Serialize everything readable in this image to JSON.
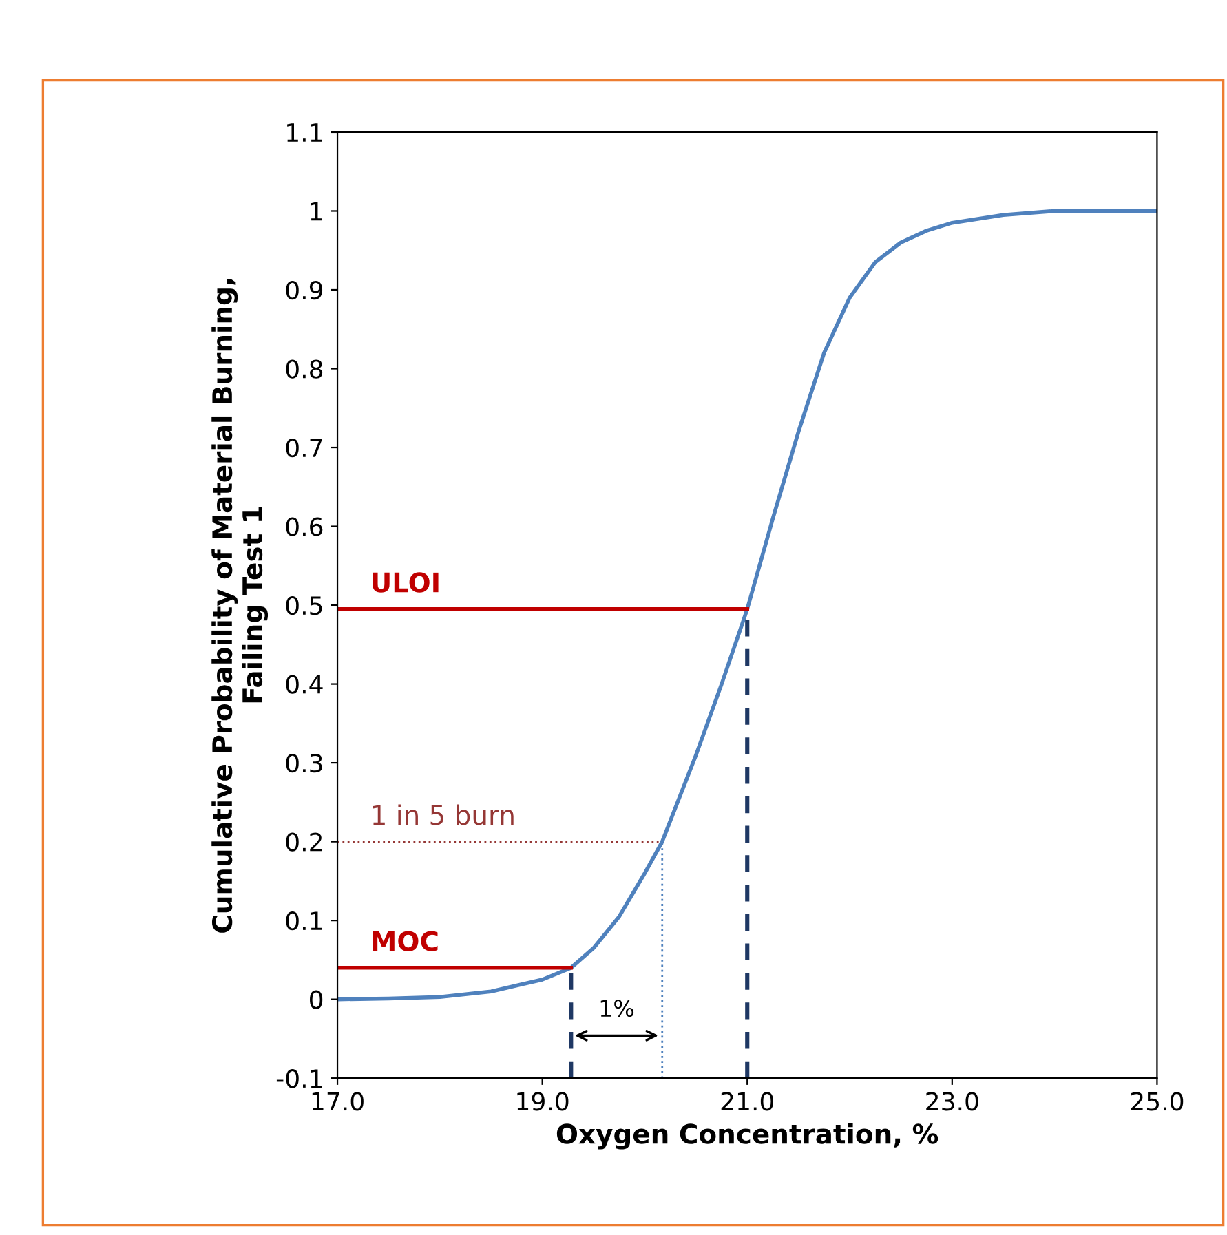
{
  "chart_data": {
    "type": "line",
    "xlabel": "Oxygen Concentration, %",
    "ylabel": "Cumulative Probability of Material Burning,\nFailing Test 1",
    "xlim": [
      17,
      25
    ],
    "ylim": [
      -0.1,
      1.1
    ],
    "xticks": [
      {
        "value": 17,
        "label": "17.0"
      },
      {
        "value": 19,
        "label": "19.0"
      },
      {
        "value": 21,
        "label": "21.0"
      },
      {
        "value": 23,
        "label": "23.0"
      },
      {
        "value": 25,
        "label": "25.0"
      }
    ],
    "yticks": [
      -0.1,
      0,
      0.1,
      0.2,
      0.3,
      0.4,
      0.5,
      0.6,
      0.7,
      0.8,
      0.9,
      1,
      1.1
    ],
    "grid": false,
    "marker": "none",
    "series": [
      {
        "color": "#4f81bd",
        "line_style": "solid",
        "x": [
          17,
          17.5,
          18,
          18.5,
          19,
          19.28,
          19.5,
          19.75,
          20,
          20.17,
          20.5,
          20.75,
          21,
          21.25,
          21.5,
          21.75,
          22,
          22.25,
          22.5,
          22.75,
          23,
          23.5,
          24,
          24.5,
          25
        ],
        "values": [
          0,
          0.001,
          0.003,
          0.01,
          0.025,
          0.04,
          0.065,
          0.105,
          0.16,
          0.2,
          0.31,
          0.4,
          0.495,
          0.61,
          0.72,
          0.82,
          0.89,
          0.935,
          0.96,
          0.975,
          0.985,
          0.995,
          1.0,
          1.0,
          1.0
        ]
      },
      {
        "name": "ULOI",
        "color": "#c00000",
        "line_style": "solid",
        "x": [
          17,
          21
        ],
        "values": [
          0.495,
          0.495
        ]
      },
      {
        "name": "MOC",
        "color": "#c00000",
        "line_style": "solid",
        "x": [
          17,
          19.28
        ],
        "values": [
          0.04,
          0.04
        ]
      },
      {
        "color": "#1f3864",
        "line_style": "dashed",
        "x": [
          19.28,
          19.28
        ],
        "values": [
          -0.1,
          0.04
        ]
      },
      {
        "color": "#1f3864",
        "line_style": "dashed",
        "x": [
          21,
          21
        ],
        "values": [
          -0.1,
          0.495
        ]
      },
      {
        "color": "#4f81bd",
        "line_style": "dotted",
        "x": [
          20.17,
          20.17
        ],
        "values": [
          -0.1,
          0.2
        ]
      },
      {
        "name": "1 in 5 burn",
        "color": "#953735",
        "line_style": "dotted",
        "x": [
          17,
          20.17
        ],
        "values": [
          0.2,
          0.2
        ]
      }
    ],
    "annotations": [
      "1%"
    ]
  }
}
